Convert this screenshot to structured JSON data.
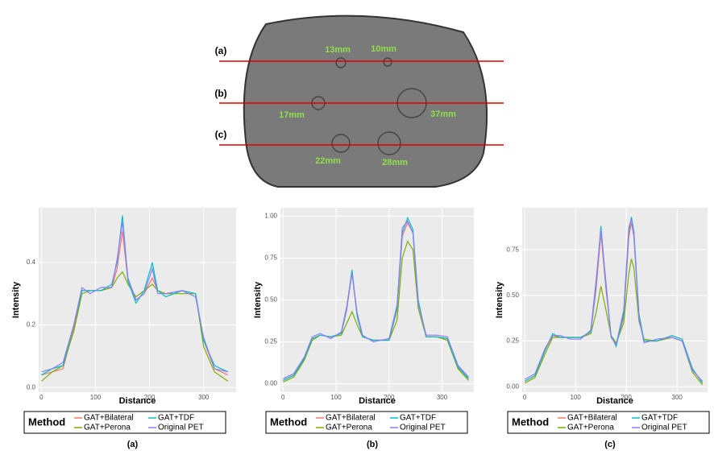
{
  "phantom": {
    "lines": [
      "(a)",
      "(b)",
      "(c)"
    ],
    "sizes": [
      "13mm",
      "10mm",
      "17mm",
      "37mm",
      "22mm",
      "28mm"
    ]
  },
  "chart_data": [
    {
      "type": "line",
      "caption": "(a)",
      "xlabel": "Distance",
      "ylabel": "Intensity",
      "legend_title": "Method",
      "grid": true,
      "xlim": [
        -5,
        360
      ],
      "xticks": [
        0,
        100,
        200,
        300
      ],
      "ylim": [
        -0.015,
        0.575
      ],
      "yticks": [
        {
          "value": 0,
          "label": "0.0"
        },
        0.2,
        0.4
      ],
      "x": [
        0,
        20,
        40,
        60,
        75,
        90,
        110,
        130,
        140,
        150,
        160,
        175,
        190,
        205,
        215,
        230,
        260,
        285,
        300,
        320,
        345
      ],
      "series": [
        {
          "name": "GAT+Bilateral",
          "color": "#F8766D",
          "values": [
            0.04,
            0.05,
            0.06,
            0.19,
            0.31,
            0.31,
            0.31,
            0.32,
            0.38,
            0.5,
            0.34,
            0.28,
            0.3,
            0.35,
            0.31,
            0.3,
            0.31,
            0.3,
            0.15,
            0.06,
            0.04
          ]
        },
        {
          "name": "GAT+Perona",
          "color": "#7CAE00",
          "values": [
            0.02,
            0.05,
            0.07,
            0.18,
            0.3,
            0.31,
            0.31,
            0.32,
            0.35,
            0.37,
            0.33,
            0.29,
            0.31,
            0.33,
            0.31,
            0.3,
            0.3,
            0.3,
            0.13,
            0.05,
            0.02
          ]
        },
        {
          "name": "GAT+TDF",
          "color": "#00BFC4",
          "values": [
            0.04,
            0.06,
            0.07,
            0.2,
            0.31,
            0.31,
            0.31,
            0.33,
            0.4,
            0.55,
            0.34,
            0.27,
            0.31,
            0.4,
            0.31,
            0.29,
            0.31,
            0.3,
            0.15,
            0.07,
            0.05
          ]
        },
        {
          "name": "Original PET",
          "color": "#8C7CFF",
          "values": [
            0.05,
            0.06,
            0.08,
            0.2,
            0.32,
            0.3,
            0.32,
            0.32,
            0.41,
            0.53,
            0.35,
            0.28,
            0.3,
            0.38,
            0.3,
            0.3,
            0.31,
            0.29,
            0.16,
            0.06,
            0.05
          ]
        }
      ]
    },
    {
      "type": "line",
      "caption": "(b)",
      "xlabel": "Distance",
      "ylabel": "Intensity",
      "legend_title": "Method",
      "grid": true,
      "xlim": [
        -5,
        360
      ],
      "xticks": [
        0,
        100,
        200,
        300
      ],
      "ylim": [
        -0.05,
        1.05
      ],
      "yticks": [
        {
          "value": 0,
          "label": "0.00"
        },
        {
          "value": 0.25,
          "label": "0.25"
        },
        {
          "value": 0.5,
          "label": "0.50"
        },
        {
          "value": 0.75,
          "label": "0.75"
        },
        {
          "value": 1,
          "label": "1.00"
        }
      ],
      "x": [
        0,
        20,
        40,
        55,
        70,
        90,
        110,
        120,
        130,
        140,
        150,
        170,
        200,
        215,
        225,
        235,
        245,
        255,
        270,
        290,
        310,
        330,
        350
      ],
      "series": [
        {
          "name": "GAT+Bilateral",
          "color": "#F8766D",
          "values": [
            0.02,
            0.05,
            0.15,
            0.27,
            0.29,
            0.28,
            0.3,
            0.44,
            0.66,
            0.4,
            0.28,
            0.26,
            0.26,
            0.44,
            0.88,
            0.96,
            0.9,
            0.49,
            0.28,
            0.28,
            0.27,
            0.1,
            0.03
          ]
        },
        {
          "name": "GAT+Perona",
          "color": "#7CAE00",
          "values": [
            0.01,
            0.04,
            0.14,
            0.26,
            0.29,
            0.28,
            0.29,
            0.36,
            0.43,
            0.35,
            0.28,
            0.26,
            0.26,
            0.38,
            0.75,
            0.85,
            0.8,
            0.45,
            0.28,
            0.28,
            0.26,
            0.09,
            0.02
          ]
        },
        {
          "name": "GAT+TDF",
          "color": "#00BFC4",
          "values": [
            0.02,
            0.05,
            0.15,
            0.27,
            0.29,
            0.28,
            0.3,
            0.45,
            0.68,
            0.4,
            0.28,
            0.26,
            0.26,
            0.45,
            0.9,
            0.99,
            0.92,
            0.5,
            0.28,
            0.28,
            0.27,
            0.1,
            0.03
          ]
        },
        {
          "name": "Original PET",
          "color": "#8C7CFF",
          "values": [
            0.03,
            0.06,
            0.16,
            0.28,
            0.3,
            0.27,
            0.31,
            0.46,
            0.66,
            0.42,
            0.29,
            0.25,
            0.27,
            0.47,
            0.93,
            0.97,
            0.9,
            0.48,
            0.29,
            0.29,
            0.28,
            0.11,
            0.04
          ]
        }
      ]
    },
    {
      "type": "line",
      "caption": "(c)",
      "xlabel": "Distance",
      "ylabel": "Intensity",
      "legend_title": "Method",
      "grid": true,
      "xlim": [
        -5,
        360
      ],
      "xticks": [
        0,
        100,
        200,
        300
      ],
      "ylim": [
        -0.03,
        0.98
      ],
      "yticks": [
        {
          "value": 0,
          "label": "0.00"
        },
        {
          "value": 0.25,
          "label": "0.25"
        },
        {
          "value": 0.5,
          "label": "0.50"
        },
        {
          "value": 0.75,
          "label": "0.75"
        }
      ],
      "x": [
        0,
        20,
        40,
        55,
        70,
        90,
        110,
        130,
        140,
        150,
        160,
        170,
        180,
        195,
        205,
        210,
        215,
        225,
        235,
        260,
        290,
        310,
        330,
        350
      ],
      "series": [
        {
          "name": "GAT+Bilateral",
          "color": "#F8766D",
          "values": [
            0.03,
            0.06,
            0.2,
            0.28,
            0.27,
            0.27,
            0.27,
            0.3,
            0.52,
            0.84,
            0.53,
            0.28,
            0.23,
            0.38,
            0.82,
            0.9,
            0.82,
            0.38,
            0.25,
            0.25,
            0.28,
            0.26,
            0.1,
            0.02
          ]
        },
        {
          "name": "GAT+Perona",
          "color": "#7CAE00",
          "values": [
            0.02,
            0.05,
            0.18,
            0.27,
            0.27,
            0.27,
            0.27,
            0.29,
            0.4,
            0.55,
            0.42,
            0.28,
            0.24,
            0.35,
            0.62,
            0.7,
            0.65,
            0.36,
            0.26,
            0.25,
            0.27,
            0.25,
            0.08,
            0.01
          ]
        },
        {
          "name": "GAT+TDF",
          "color": "#00BFC4",
          "values": [
            0.03,
            0.06,
            0.2,
            0.29,
            0.27,
            0.27,
            0.27,
            0.3,
            0.55,
            0.88,
            0.55,
            0.28,
            0.22,
            0.4,
            0.85,
            0.93,
            0.85,
            0.4,
            0.25,
            0.25,
            0.28,
            0.26,
            0.1,
            0.02
          ]
        },
        {
          "name": "Original PET",
          "color": "#8C7CFF",
          "values": [
            0.04,
            0.07,
            0.21,
            0.28,
            0.28,
            0.26,
            0.26,
            0.31,
            0.57,
            0.86,
            0.57,
            0.27,
            0.23,
            0.42,
            0.87,
            0.92,
            0.83,
            0.38,
            0.24,
            0.26,
            0.27,
            0.25,
            0.09,
            0.03
          ]
        }
      ]
    }
  ]
}
